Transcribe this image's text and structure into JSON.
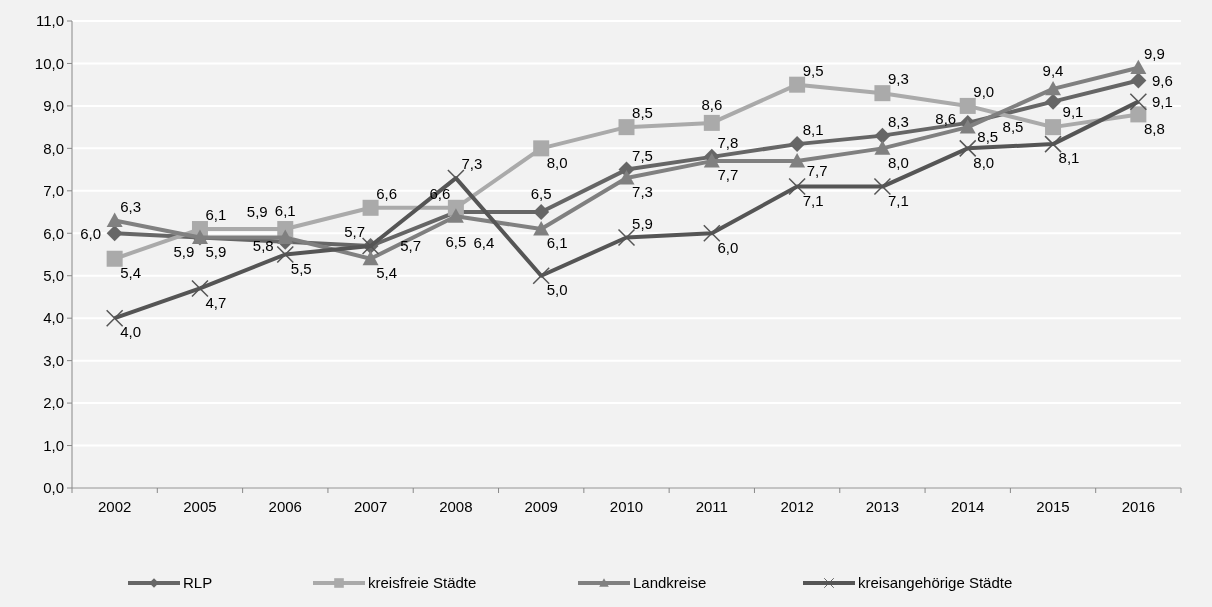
{
  "chart_data": {
    "type": "line",
    "categories": [
      "2002",
      "2005",
      "2006",
      "2007",
      "2008",
      "2009",
      "2010",
      "2011",
      "2012",
      "2013",
      "2014",
      "2015",
      "2016"
    ],
    "series": [
      {
        "name": "RLP",
        "color": "#666666",
        "marker": "diamond",
        "values": [
          6.0,
          5.9,
          5.8,
          5.7,
          6.5,
          6.5,
          7.5,
          7.8,
          8.1,
          8.3,
          8.6,
          9.1,
          9.6
        ],
        "value_labels": [
          "6,0",
          "5,9",
          "5,8",
          "5,7",
          "6,5",
          "6,5",
          "7,5",
          "7,8",
          "8,1",
          "8,3",
          "8,6",
          "9,1",
          "9,6"
        ]
      },
      {
        "name": "kreisfreie Städte",
        "color": "#aaaaaa",
        "marker": "square",
        "values": [
          5.4,
          6.1,
          6.1,
          6.6,
          6.6,
          8.0,
          8.5,
          8.6,
          9.5,
          9.3,
          9.0,
          8.5,
          8.8
        ],
        "value_labels": [
          "5,4",
          "6,1",
          "6,1",
          "6,6",
          "6,6",
          "8,0",
          "8,5",
          "8,6",
          "9,5",
          "9,3",
          "9,0",
          "8,5",
          "8,8"
        ]
      },
      {
        "name": "Landkreise",
        "color": "#808080",
        "marker": "triangle",
        "values": [
          6.3,
          5.9,
          5.9,
          5.4,
          6.4,
          6.1,
          7.3,
          7.7,
          7.7,
          8.0,
          8.5,
          9.4,
          9.9
        ],
        "value_labels": [
          "6,3",
          "5,9",
          "5,9",
          "5,4",
          "6,4",
          "6,1",
          "7,3",
          "7,7",
          "7,7",
          "8,0",
          "8,5",
          "9,4",
          "9,9"
        ]
      },
      {
        "name": "kreisangehörige Städte",
        "color": "#555555",
        "marker": "cross",
        "values": [
          4.0,
          4.7,
          5.5,
          5.7,
          7.3,
          5.0,
          5.9,
          6.0,
          7.1,
          7.1,
          8.0,
          8.1,
          9.1
        ],
        "value_labels": [
          "4,0",
          "4,7",
          "5,5",
          "5,7",
          "7,3",
          "5,0",
          "5,9",
          "6,0",
          "7,1",
          "7,1",
          "8,0",
          "8,1",
          "9,1"
        ]
      }
    ],
    "ylim": [
      0,
      11
    ],
    "yticks": [
      {
        "value": 0,
        "label": "0,0"
      },
      {
        "value": 1,
        "label": "1,0"
      },
      {
        "value": 2,
        "label": "2,0"
      },
      {
        "value": 3,
        "label": "3,0"
      },
      {
        "value": 4,
        "label": "4,0"
      },
      {
        "value": 5,
        "label": "5,0"
      },
      {
        "value": 6,
        "label": "6,0"
      },
      {
        "value": 7,
        "label": "7,0"
      },
      {
        "value": 8,
        "label": "8,0"
      },
      {
        "value": 9,
        "label": "9,0"
      },
      {
        "value": 10,
        "label": "10,0"
      },
      {
        "value": 11,
        "label": "11,0"
      }
    ],
    "grid": "y",
    "legend": "bottom",
    "data_labels": true,
    "line_style": "solid"
  }
}
